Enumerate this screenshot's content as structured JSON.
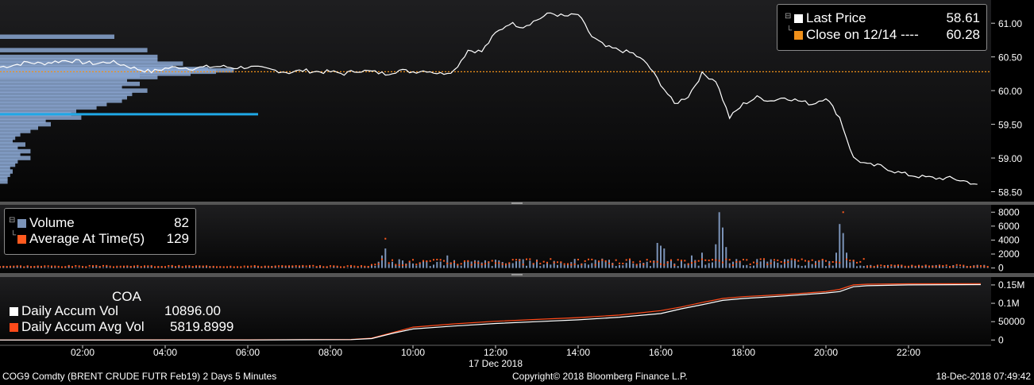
{
  "colors": {
    "background_top": "#1c1c1e",
    "background_bottom": "#000000",
    "price_line": "#ffffff",
    "close_line": "#f0901a",
    "volume_bar": "#7b93b8",
    "avg_dot": "#ff5a1f",
    "profile_bar": "#8aa6d0",
    "poc_bar": "#1fa8e6",
    "accum_vol_line": "#ffffff",
    "accum_avg_line": "#ff4a1a",
    "axis_text": "#ffffff"
  },
  "price_legend": {
    "last_price_label": "Last Price",
    "last_price_value": "58.61",
    "close_label": "Close on 12/14 ----",
    "close_value": "60.28"
  },
  "volume_legend": {
    "volume_label": "Volume",
    "volume_value": "82",
    "avg_label": "Average At Time(5)",
    "avg_value": "129"
  },
  "coa_legend": {
    "title": "COA",
    "accum_label": "Daily Accum Vol",
    "accum_value": "10896.00",
    "avg_label": "Daily Accum Avg Vol",
    "avg_value": "5819.8999"
  },
  "footer": {
    "ticker": "COG9 Comdty (BRENT CRUDE FUTR  Feb19) 2 Days 5 Minutes",
    "copyright": "Copyright© 2018 Bloomberg Finance L.P.",
    "timestamp": "18-Dec-2018 07:49:42"
  },
  "chart_data": [
    {
      "type": "line",
      "series": [
        {
          "name": "Last Price",
          "x": [
            "00:00",
            "00:20",
            "00:40",
            "01:00",
            "01:20",
            "01:40",
            "02:00",
            "02:20",
            "02:40",
            "03:00",
            "03:20",
            "03:40",
            "04:00",
            "04:20",
            "04:40",
            "05:00",
            "05:20",
            "05:40",
            "06:00",
            "06:20",
            "06:40",
            "07:00",
            "07:20",
            "07:40",
            "08:00",
            "08:20",
            "08:40",
            "09:00",
            "09:20",
            "09:40",
            "10:00",
            "10:20",
            "10:40",
            "11:00",
            "11:20",
            "11:40",
            "12:00",
            "12:20",
            "12:40",
            "13:00",
            "13:20",
            "13:40",
            "14:00",
            "14:20",
            "14:40",
            "15:00",
            "15:20",
            "15:40",
            "16:00",
            "16:20",
            "16:40",
            "17:00",
            "17:20",
            "17:40",
            "18:00",
            "18:20",
            "18:40",
            "19:00",
            "19:20",
            "19:40",
            "20:00",
            "20:20",
            "20:40",
            "21:00",
            "21:20",
            "21:40",
            "22:00",
            "22:20",
            "22:40",
            "23:00",
            "23:20",
            "23:40"
          ],
          "values": [
            60.35,
            60.38,
            60.42,
            60.4,
            60.43,
            60.45,
            60.42,
            60.4,
            60.43,
            60.38,
            60.32,
            60.28,
            60.33,
            60.35,
            60.33,
            60.35,
            60.36,
            60.34,
            60.35,
            60.33,
            60.3,
            60.27,
            60.3,
            60.28,
            60.28,
            60.25,
            60.3,
            60.28,
            60.25,
            60.3,
            60.28,
            60.3,
            60.25,
            60.3,
            60.6,
            60.58,
            60.85,
            61.0,
            60.95,
            61.05,
            61.15,
            61.1,
            61.13,
            60.8,
            60.65,
            60.6,
            60.55,
            60.4,
            60.1,
            59.8,
            59.92,
            60.25,
            60.15,
            59.6,
            59.8,
            59.9,
            59.85,
            59.9,
            59.85,
            59.8,
            59.9,
            59.6,
            59.0,
            58.9,
            58.88,
            58.8,
            58.75,
            58.72,
            58.7,
            58.7,
            58.66,
            58.61
          ]
        },
        {
          "name": "Close on 12/14",
          "values": [
            60.28
          ]
        }
      ],
      "ylim": [
        58.4,
        61.25
      ],
      "yticks": [
        "61.00",
        "60.50",
        "60.00",
        "59.50",
        "59.00",
        "58.50"
      ],
      "ytick_values": [
        61.0,
        60.5,
        60.0,
        59.5,
        59.0,
        58.5
      ],
      "profile": {
        "prices": [
          60.8,
          60.6,
          60.5,
          60.45,
          60.4,
          60.35,
          60.32,
          60.3,
          60.28,
          60.25,
          60.22,
          60.2,
          60.15,
          60.1,
          60.05,
          60.0,
          59.95,
          59.9,
          59.85,
          59.8,
          59.75,
          59.7,
          59.65,
          59.6,
          59.55,
          59.5,
          59.45,
          59.4,
          59.35,
          59.3,
          59.25,
          59.2,
          59.15,
          59.1,
          59.05,
          59.0,
          58.95,
          58.9,
          58.85,
          58.8,
          58.75,
          58.7,
          58.65
        ],
        "volumes": [
          0.45,
          0.58,
          0.62,
          0.62,
          0.72,
          0.68,
          0.82,
          0.92,
          0.85,
          0.75,
          0.55,
          0.62,
          0.5,
          0.55,
          0.48,
          0.58,
          0.52,
          0.5,
          0.48,
          0.42,
          0.38,
          0.3,
          0.28,
          0.32,
          0.18,
          0.2,
          0.15,
          0.12,
          0.08,
          0.06,
          0.05,
          0.1,
          0.07,
          0.12,
          0.08,
          0.12,
          0.07,
          0.06,
          0.04,
          0.05,
          0.04,
          0.03,
          0.03
        ],
        "poc_price": 59.65,
        "poc_volume": 1.0
      }
    },
    {
      "type": "bar",
      "series": [
        {
          "name": "Volume"
        },
        {
          "name": "Average At Time(5)"
        }
      ],
      "ylim": [
        -500,
        8600
      ],
      "yticks": [
        "8000",
        "6000",
        "4000",
        "2000",
        "0"
      ],
      "ytick_values": [
        8000,
        6000,
        4000,
        2000,
        0
      ],
      "spikes_x": [
        "09:10",
        "09:15",
        "09:20",
        "10:50",
        "15:55",
        "16:00",
        "16:05",
        "16:45",
        "17:00",
        "17:20",
        "17:25",
        "17:30",
        "17:35",
        "20:15",
        "20:20",
        "20:25",
        "20:30"
      ],
      "spikes_values": [
        900,
        1800,
        2800,
        1800,
        3600,
        3200,
        2800,
        1800,
        2200,
        3400,
        8000,
        5800,
        3000,
        2200,
        6300,
        5000,
        2200
      ],
      "avg_spikes_x": [
        "09:20",
        "20:25"
      ],
      "avg_spikes_values": [
        4200,
        8000
      ]
    },
    {
      "type": "line",
      "series": [
        {
          "name": "Daily Accum Vol",
          "x": [
            "00:00",
            "06:00",
            "08:30",
            "09:00",
            "09:30",
            "10:00",
            "11:00",
            "12:00",
            "13:00",
            "14:00",
            "15:00",
            "16:00",
            "16:30",
            "17:00",
            "17:30",
            "18:00",
            "19:00",
            "20:00",
            "20:20",
            "20:40",
            "21:00",
            "22:00",
            "23:45"
          ],
          "values": [
            0,
            0,
            1000,
            4000,
            18000,
            30000,
            38000,
            45000,
            50000,
            55000,
            62000,
            72000,
            85000,
            96000,
            108000,
            113000,
            120000,
            128000,
            132000,
            145000,
            148000,
            150000,
            151000
          ]
        },
        {
          "name": "Daily Accum Avg Vol",
          "x": [
            "00:00",
            "06:00",
            "08:30",
            "09:00",
            "09:30",
            "10:00",
            "11:00",
            "12:00",
            "13:00",
            "14:00",
            "15:00",
            "16:00",
            "16:30",
            "17:00",
            "17:30",
            "18:00",
            "19:00",
            "20:00",
            "20:20",
            "20:40",
            "21:00",
            "22:00",
            "23:45"
          ],
          "values": [
            0,
            500,
            1500,
            5000,
            20000,
            35000,
            44000,
            51000,
            56000,
            61000,
            68000,
            80000,
            90000,
            102000,
            113000,
            118000,
            124000,
            132000,
            138000,
            150000,
            152000,
            153000,
            153500
          ]
        }
      ],
      "ylim": [
        -8000,
        165000
      ],
      "yticks": [
        "0.15M",
        "0.1M",
        "50000",
        "0"
      ],
      "ytick_values": [
        150000,
        100000,
        50000,
        0
      ]
    }
  ],
  "x_axis": {
    "labels": [
      "02:00",
      "04:00",
      "06:00",
      "08:00",
      "10:00",
      "12:00",
      "14:00",
      "16:00",
      "18:00",
      "20:00",
      "22:00"
    ],
    "hours": [
      2,
      4,
      6,
      8,
      10,
      12,
      14,
      16,
      18,
      20,
      22
    ],
    "date_label": "17 Dec 2018",
    "date_hour": 12
  }
}
